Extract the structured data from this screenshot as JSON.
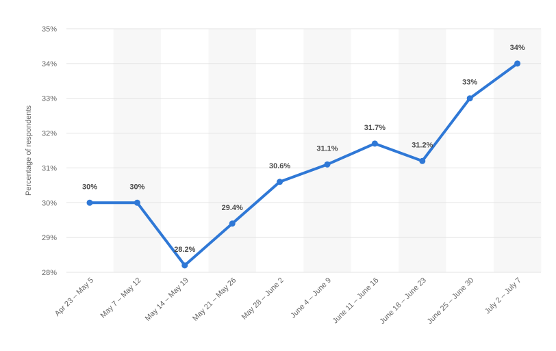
{
  "chart_data": {
    "type": "line",
    "ylabel": "Percentage of respondents",
    "xlabel": "",
    "categories": [
      "Apr 23 – May 5",
      "May 7 – May 12",
      "May 14 – May 19",
      "May 21 – May 26",
      "May 28 – June 2",
      "June 4 – June 9",
      "June 11 – June 16",
      "June 18 – June 23",
      "June 25 – June 30",
      "July 2 – July 7"
    ],
    "series": [
      {
        "values": [
          30,
          30,
          28.2,
          29.4,
          30.6,
          31.1,
          31.7,
          31.2,
          33,
          34
        ],
        "labels": [
          "30%",
          "30%",
          "28.2%",
          "29.4%",
          "30.6%",
          "31.1%",
          "31.7%",
          "31.2%",
          "33%",
          "34%"
        ]
      }
    ],
    "ylim": [
      28,
      35
    ],
    "yticks": [
      28,
      29,
      30,
      31,
      32,
      33,
      34,
      35
    ],
    "ytick_labels": [
      "28%",
      "29%",
      "30%",
      "31%",
      "32%",
      "33%",
      "34%",
      "35%"
    ],
    "grid": true,
    "line_color": "#2f78d6",
    "band_color": "#f7f7f7"
  }
}
